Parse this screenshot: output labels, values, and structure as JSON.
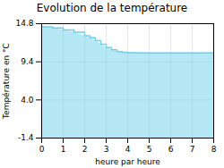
{
  "chart_data": {
    "type": "area",
    "title": "Evolution de la température",
    "xlabel": "heure par heure",
    "ylabel": "Température en °C",
    "x": [
      0,
      0.5,
      1.0,
      1.5,
      2.0,
      2.25,
      2.5,
      2.75,
      3.0,
      3.25,
      3.5,
      3.75,
      4.0,
      4.5,
      5.0,
      5.5,
      6.0,
      6.5,
      7.0,
      7.5,
      8.0
    ],
    "values": [
      14.35,
      14.2,
      13.9,
      13.6,
      13.1,
      12.8,
      12.4,
      11.9,
      11.4,
      11.1,
      10.85,
      10.75,
      10.7,
      10.65,
      10.65,
      10.65,
      10.65,
      10.65,
      10.65,
      10.65,
      10.7
    ],
    "color": "#6dcfea",
    "line_style": "steps",
    "xlim": [
      0,
      8
    ],
    "xticks": [
      0,
      1,
      2,
      3,
      4,
      5,
      6,
      7,
      8
    ],
    "ylim": [
      -1.4,
      14.8
    ],
    "yticks": [
      -1.4,
      {
        "value": 4.0,
        "label": "4.0"
      },
      9.4,
      14.8
    ],
    "grid": true
  }
}
